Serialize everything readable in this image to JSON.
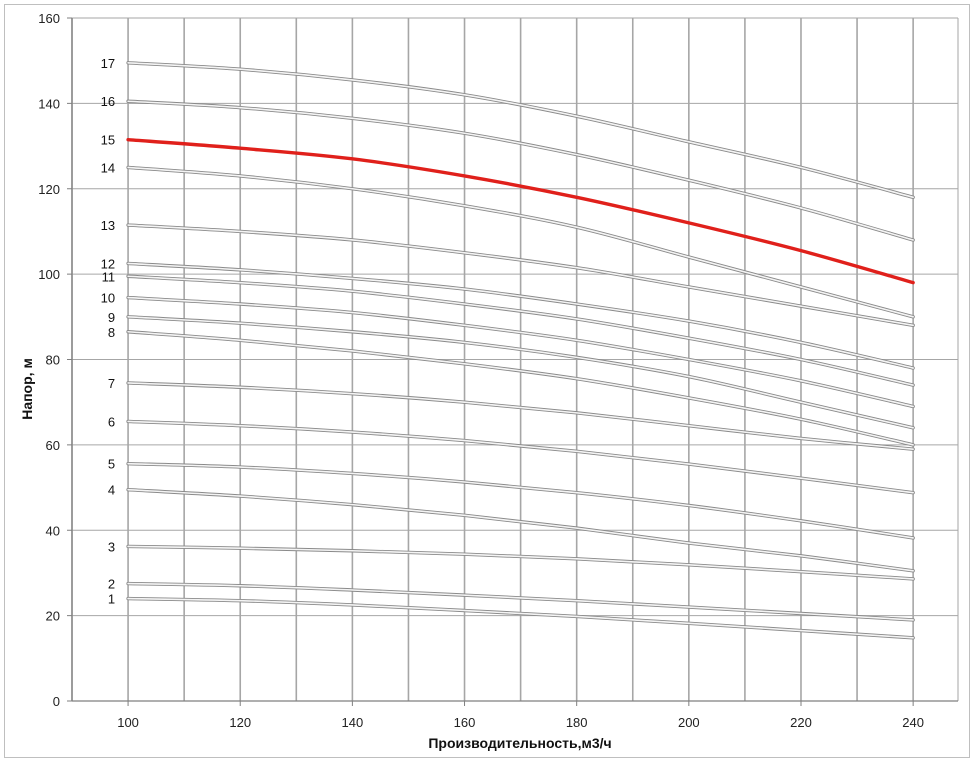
{
  "chart_data": {
    "type": "line",
    "title": "",
    "xlabel": "Производительность,м3/ч",
    "ylabel": "Напор, м",
    "xlim": [
      90,
      248
    ],
    "ylim": [
      0,
      160
    ],
    "x_ticks": [
      100,
      120,
      140,
      160,
      180,
      200,
      220,
      240
    ],
    "y_ticks": [
      0,
      20,
      40,
      60,
      80,
      100,
      120,
      140,
      160
    ],
    "grid": true,
    "x": [
      100,
      120,
      140,
      160,
      180,
      200,
      220,
      240
    ],
    "series": [
      {
        "name": "1",
        "values": [
          24.0,
          23.5,
          22.5,
          21.2,
          19.8,
          18.2,
          16.5,
          14.8
        ]
      },
      {
        "name": "2",
        "values": [
          27.5,
          27.0,
          26.0,
          24.8,
          23.5,
          22.0,
          20.5,
          19.0
        ]
      },
      {
        "name": "3",
        "values": [
          36.2,
          35.8,
          35.2,
          34.4,
          33.3,
          31.9,
          30.3,
          28.6
        ]
      },
      {
        "name": "4",
        "values": [
          49.5,
          48.0,
          46.0,
          43.5,
          40.5,
          37.0,
          34.0,
          30.5
        ]
      },
      {
        "name": "5",
        "values": [
          55.6,
          54.8,
          53.3,
          51.3,
          48.8,
          45.8,
          42.2,
          38.2
        ]
      },
      {
        "name": "6",
        "values": [
          65.5,
          64.5,
          63.0,
          61.0,
          58.5,
          55.5,
          52.2,
          48.8
        ]
      },
      {
        "name": "7",
        "values": [
          74.5,
          73.5,
          72.0,
          70.0,
          67.5,
          64.5,
          61.5,
          59.0
        ]
      },
      {
        "name": "8",
        "values": [
          86.5,
          84.5,
          82.0,
          79.0,
          75.5,
          71.0,
          66.0,
          60.0
        ]
      },
      {
        "name": "9",
        "values": [
          90.0,
          88.5,
          86.5,
          84.0,
          80.5,
          76.0,
          70.0,
          64.0
        ]
      },
      {
        "name": "10",
        "values": [
          94.5,
          93.0,
          91.0,
          88.0,
          84.5,
          80.0,
          75.0,
          69.0
        ]
      },
      {
        "name": "11",
        "values": [
          99.5,
          98.0,
          96.0,
          93.0,
          89.5,
          85.0,
          80.0,
          74.0
        ]
      },
      {
        "name": "12",
        "values": [
          102.5,
          101.0,
          99.0,
          96.5,
          93.0,
          89.0,
          84.0,
          78.0
        ]
      },
      {
        "name": "13",
        "values": [
          111.5,
          110.0,
          108.0,
          105.0,
          101.5,
          97.0,
          92.5,
          88.0
        ]
      },
      {
        "name": "14",
        "values": [
          125.0,
          123.0,
          120.0,
          116.0,
          111.0,
          104.0,
          97.0,
          90.0
        ]
      },
      {
        "name": "15",
        "values": [
          131.5,
          129.5,
          127.0,
          123.0,
          118.0,
          112.0,
          105.5,
          98.0
        ]
      },
      {
        "name": "16",
        "values": [
          140.5,
          139.0,
          136.5,
          133.0,
          128.0,
          122.0,
          115.5,
          108.0
        ]
      },
      {
        "name": "17",
        "values": [
          149.5,
          148.0,
          145.5,
          142.0,
          137.0,
          131.0,
          125.0,
          118.0
        ]
      }
    ],
    "highlight_series": "15",
    "colors": {
      "curve": "#d0d0d0",
      "curve_edge": "#8a8a8a",
      "highlight": "#e0201b",
      "grid": "#a6a6a6",
      "axis": "#7f7f7f"
    }
  }
}
